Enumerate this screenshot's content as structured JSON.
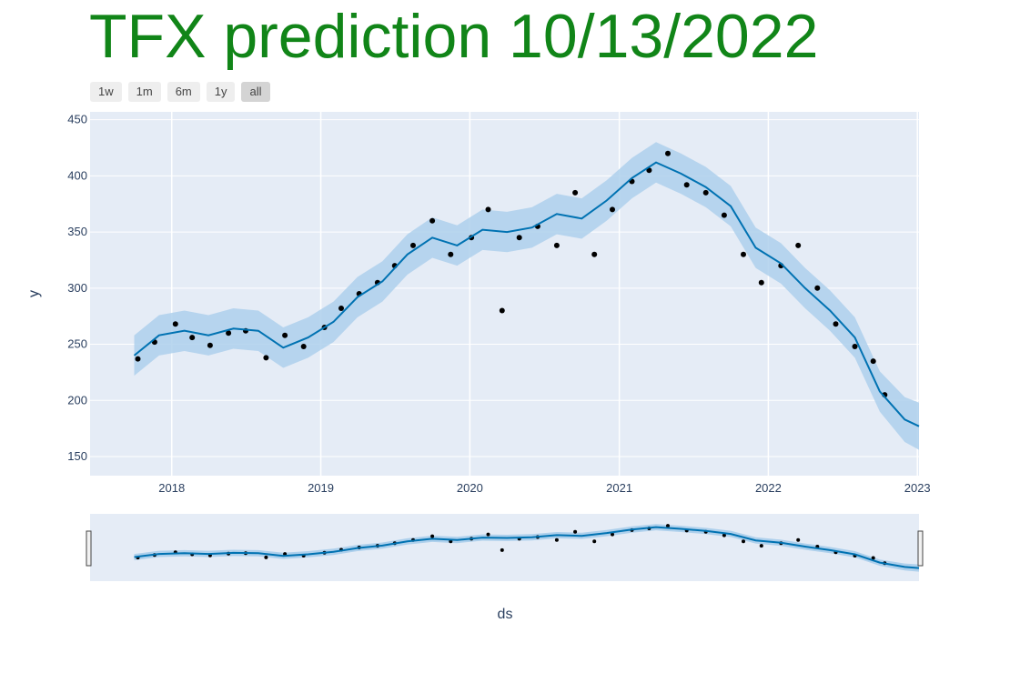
{
  "title": "TFX prediction 10/13/2022",
  "range_buttons": [
    "1w",
    "1m",
    "6m",
    "1y",
    "all"
  ],
  "active_range": "all",
  "colors": {
    "title": "#118518",
    "plot_bg": "#e5ecf6",
    "band": "#aed0ec",
    "forecast_line": "#0072b2",
    "points": "#000000"
  },
  "chart_data": {
    "type": "scatter",
    "xlabel": "ds",
    "ylabel": "y",
    "xlim": [
      "2017-06-15",
      "2023-01-05"
    ],
    "ylim": [
      133,
      457
    ],
    "x_ticks": [
      "2018",
      "2019",
      "2020",
      "2021",
      "2022",
      "2023"
    ],
    "y_ticks": [
      150,
      200,
      250,
      300,
      350,
      400,
      450
    ],
    "grid": true,
    "forecast": {
      "x": [
        "2017-10-01",
        "2017-12-01",
        "2018-02-01",
        "2018-04-01",
        "2018-06-01",
        "2018-08-01",
        "2018-10-01",
        "2018-12-01",
        "2019-02-01",
        "2019-04-01",
        "2019-06-01",
        "2019-08-01",
        "2019-10-01",
        "2019-12-01",
        "2020-02-01",
        "2020-04-01",
        "2020-06-01",
        "2020-08-01",
        "2020-10-01",
        "2020-12-01",
        "2021-02-01",
        "2021-04-01",
        "2021-06-01",
        "2021-08-01",
        "2021-10-01",
        "2021-12-01",
        "2022-02-01",
        "2022-04-01",
        "2022-06-01",
        "2022-08-01",
        "2022-10-01",
        "2022-12-01",
        "2023-01-05"
      ],
      "yhat": [
        240,
        258,
        262,
        258,
        264,
        262,
        247,
        256,
        270,
        292,
        306,
        330,
        345,
        338,
        352,
        350,
        354,
        366,
        362,
        378,
        398,
        412,
        402,
        390,
        373,
        336,
        322,
        300,
        280,
        256,
        208,
        183,
        177
      ],
      "lower": [
        222,
        240,
        244,
        240,
        246,
        244,
        229,
        238,
        252,
        274,
        288,
        312,
        327,
        320,
        334,
        332,
        336,
        348,
        344,
        360,
        380,
        394,
        384,
        372,
        355,
        318,
        304,
        282,
        262,
        238,
        190,
        163,
        156
      ],
      "upper": [
        258,
        276,
        280,
        276,
        282,
        280,
        265,
        274,
        288,
        310,
        324,
        348,
        363,
        356,
        370,
        368,
        372,
        384,
        380,
        396,
        416,
        430,
        420,
        408,
        391,
        354,
        340,
        318,
        298,
        274,
        226,
        203,
        198
      ]
    },
    "actual": {
      "x": [
        "2017-10-10",
        "2017-11-20",
        "2018-01-10",
        "2018-02-20",
        "2018-04-05",
        "2018-05-20",
        "2018-07-01",
        "2018-08-20",
        "2018-10-05",
        "2018-11-20",
        "2019-01-10",
        "2019-02-20",
        "2019-04-05",
        "2019-05-20",
        "2019-07-01",
        "2019-08-15",
        "2019-10-01",
        "2019-11-15",
        "2020-01-05",
        "2020-02-15",
        "2020-03-20",
        "2020-05-01",
        "2020-06-15",
        "2020-08-01",
        "2020-09-15",
        "2020-11-01",
        "2020-12-15",
        "2021-02-01",
        "2021-03-15",
        "2021-04-30",
        "2021-06-15",
        "2021-08-01",
        "2021-09-15",
        "2021-11-01",
        "2021-12-15",
        "2022-02-01",
        "2022-03-15",
        "2022-05-01",
        "2022-06-15",
        "2022-08-01",
        "2022-09-15",
        "2022-10-13"
      ],
      "y": [
        237,
        252,
        268,
        256,
        249,
        260,
        262,
        238,
        258,
        248,
        265,
        282,
        295,
        305,
        320,
        338,
        360,
        330,
        345,
        370,
        280,
        345,
        355,
        338,
        385,
        330,
        370,
        395,
        405,
        420,
        392,
        385,
        365,
        330,
        305,
        320,
        338,
        300,
        268,
        248,
        235,
        205
      ]
    }
  }
}
